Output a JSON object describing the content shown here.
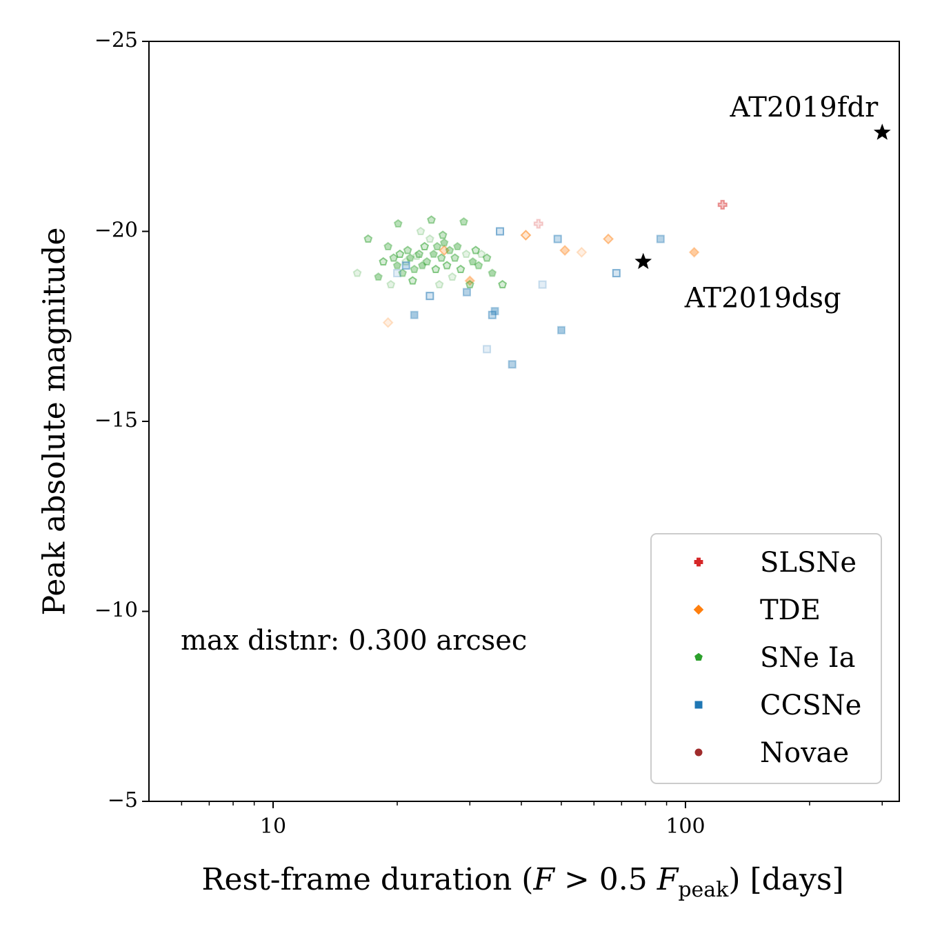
{
  "chart_data": {
    "type": "scatter",
    "xlabel_main": "Rest-frame duration (",
    "xlabel_F": "F",
    "xlabel_gt": " > 0.5 ",
    "xlabel_F2": "F",
    "xlabel_sub": "peak",
    "xlabel_end": ") [days]",
    "ylabel": "Peak absolute magnitude",
    "x_scale": "log",
    "xlim": [
      5,
      330
    ],
    "ylim": [
      -5,
      -25
    ],
    "y_inverted": true,
    "x_ticks": [
      10,
      100
    ],
    "x_tick_labels": [
      "10",
      "100"
    ],
    "y_ticks": [
      -25,
      -20,
      -15,
      -10,
      -5
    ],
    "y_tick_labels": [
      "−25",
      "−20",
      "−15",
      "−10",
      "−5"
    ],
    "grid": false,
    "annotation": "max distnr: 0.300 arcsec",
    "legend": {
      "placement": "lower-right",
      "entries": [
        {
          "label": "SLSNe",
          "color": "#d62728",
          "marker": "plus"
        },
        {
          "label": "TDE",
          "color": "#ff7f0e",
          "marker": "diamond"
        },
        {
          "label": "SNe Ia",
          "color": "#2ca02c",
          "marker": "pentagon"
        },
        {
          "label": "CCSNe",
          "color": "#1f77b4",
          "marker": "square"
        },
        {
          "label": "Novae",
          "color": "#a02c2c",
          "marker": "circle"
        }
      ]
    },
    "highlighted": [
      {
        "name": "AT2019fdr",
        "x": 300,
        "y": -22.6
      },
      {
        "name": "AT2019dsg",
        "x": 79,
        "y": -19.2
      }
    ],
    "series": [
      {
        "name": "SLSNe",
        "points": [
          [
            44,
            -20.2
          ],
          [
            123,
            -20.7
          ]
        ]
      },
      {
        "name": "TDE",
        "points": [
          [
            19,
            -17.6
          ],
          [
            26,
            -19.5
          ],
          [
            30,
            -18.7
          ],
          [
            41,
            -19.9
          ],
          [
            51,
            -19.5
          ],
          [
            56,
            -19.45
          ],
          [
            65,
            -19.8
          ],
          [
            105,
            -19.45
          ]
        ]
      },
      {
        "name": "SNe Ia",
        "points": [
          [
            16,
            -18.9
          ],
          [
            17,
            -19.8
          ],
          [
            18,
            -18.8
          ],
          [
            18.5,
            -19.2
          ],
          [
            19,
            -19.6
          ],
          [
            19.3,
            -18.6
          ],
          [
            19.6,
            -19.3
          ],
          [
            20,
            -19.1
          ],
          [
            20.3,
            -19.4
          ],
          [
            20.6,
            -18.9
          ],
          [
            21,
            -19.2
          ],
          [
            21.2,
            -19.5
          ],
          [
            21.5,
            -19.3
          ],
          [
            21.8,
            -18.7
          ],
          [
            22,
            -19.0
          ],
          [
            22.3,
            -19.35
          ],
          [
            22.6,
            -19.4
          ],
          [
            23,
            -19.1
          ],
          [
            23.3,
            -19.6
          ],
          [
            23.6,
            -19.2
          ],
          [
            24,
            -19.8
          ],
          [
            24.2,
            -20.3
          ],
          [
            24.5,
            -19.4
          ],
          [
            24.8,
            -19.0
          ],
          [
            25,
            -19.6
          ],
          [
            25.3,
            -18.6
          ],
          [
            25.6,
            -19.3
          ],
          [
            26,
            -19.7
          ],
          [
            26.4,
            -19.1
          ],
          [
            26.8,
            -19.5
          ],
          [
            27.2,
            -18.8
          ],
          [
            27.6,
            -19.3
          ],
          [
            28,
            -19.6
          ],
          [
            28.5,
            -19.0
          ],
          [
            29,
            -20.25
          ],
          [
            29.4,
            -19.4
          ],
          [
            30,
            -18.6
          ],
          [
            30.5,
            -19.2
          ],
          [
            31,
            -19.5
          ],
          [
            31.5,
            -19.1
          ],
          [
            32,
            -19.4
          ],
          [
            33,
            -19.3
          ],
          [
            34,
            -18.9
          ],
          [
            36,
            -18.6
          ],
          [
            20.1,
            -20.2
          ],
          [
            22.8,
            -20.0
          ],
          [
            25.8,
            -19.9
          ]
        ]
      },
      {
        "name": "CCSNe",
        "points": [
          [
            20,
            -18.9
          ],
          [
            21,
            -19.1
          ],
          [
            22,
            -17.8
          ],
          [
            24,
            -18.3
          ],
          [
            29.5,
            -18.4
          ],
          [
            33,
            -16.9
          ],
          [
            34,
            -17.8
          ],
          [
            34.5,
            -17.9
          ],
          [
            35.5,
            -20.0
          ],
          [
            38,
            -16.5
          ],
          [
            45,
            -18.6
          ],
          [
            49,
            -19.8
          ],
          [
            50,
            -17.4
          ],
          [
            68,
            -18.9
          ],
          [
            87,
            -19.8
          ]
        ]
      },
      {
        "name": "Novae",
        "points": []
      }
    ]
  }
}
